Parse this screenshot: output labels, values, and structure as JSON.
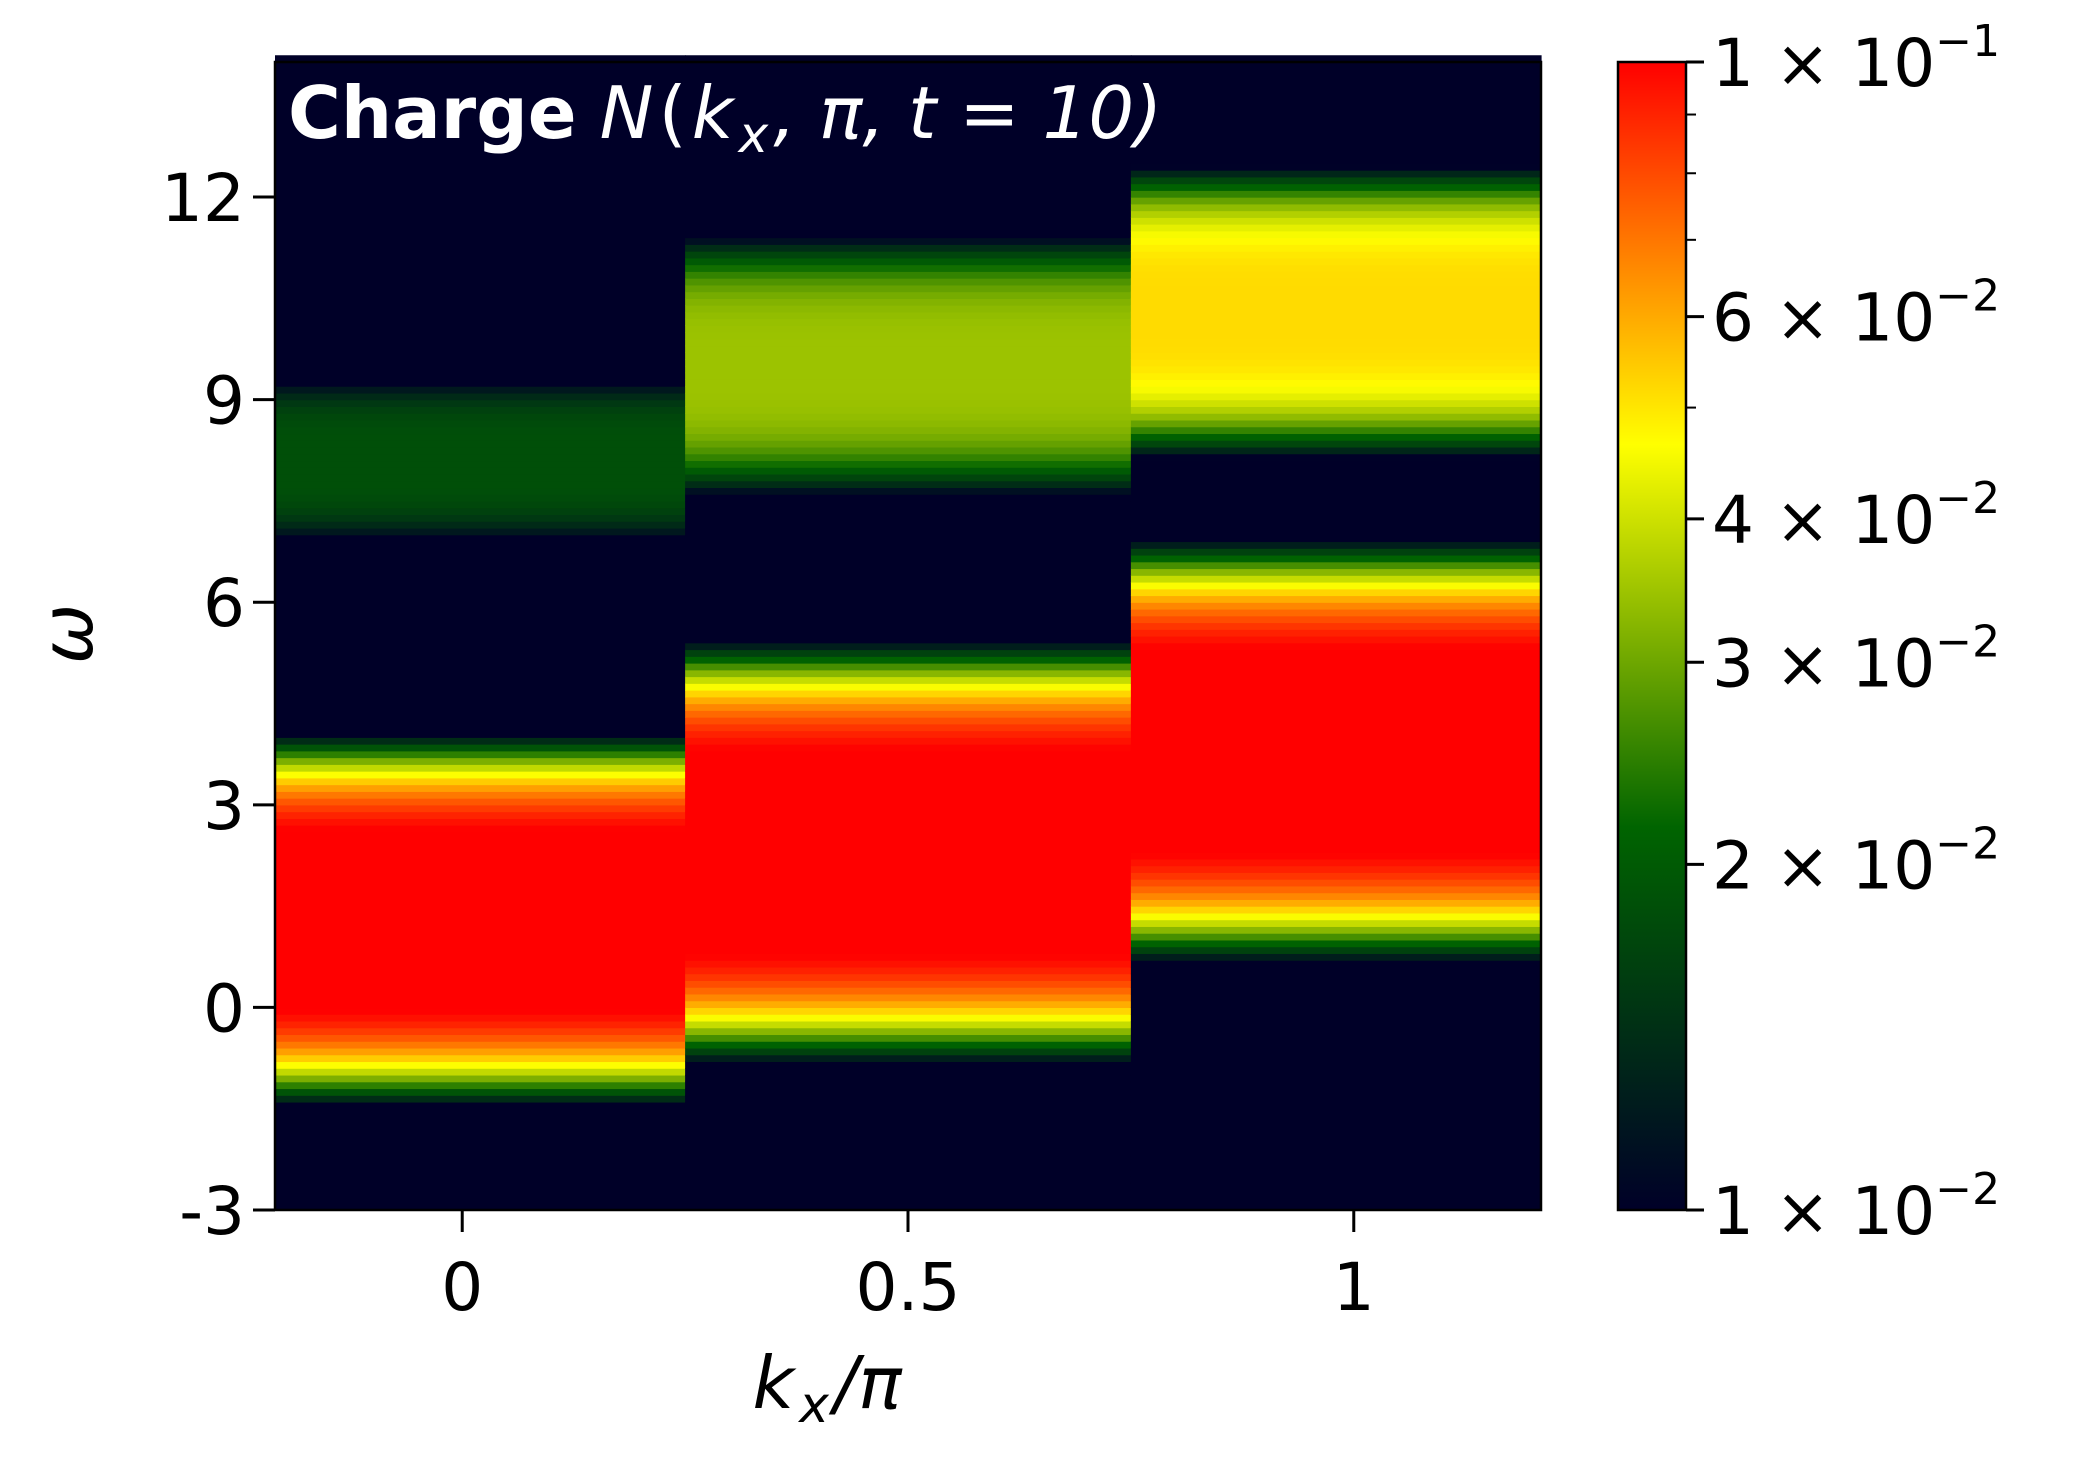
{
  "chart_data": {
    "type": "heatmap",
    "title": {
      "bold": "Charge",
      "symbol": "N",
      "args_open": "(",
      "kx": "k",
      "kx_sub": "x",
      "rest": ", π, t = 10)"
    },
    "xlabel": {
      "main": "k",
      "sub": "x",
      "rest": "/π"
    },
    "ylabel": "ω",
    "x_ticks": [
      {
        "value": 0,
        "label": "0"
      },
      {
        "value": 0.5,
        "label": "0.5"
      },
      {
        "value": 1,
        "label": "1"
      }
    ],
    "y_ticks": [
      {
        "value": -3,
        "label": "-3"
      },
      {
        "value": 0,
        "label": "0"
      },
      {
        "value": 3,
        "label": "3"
      },
      {
        "value": 6,
        "label": "6"
      },
      {
        "value": 9,
        "label": "9"
      },
      {
        "value": 12,
        "label": "12"
      }
    ],
    "xlim": [
      -0.21,
      1.21
    ],
    "ylim": [
      -3,
      14
    ],
    "color_scale": "log",
    "colorbar": {
      "range": [
        0.01,
        0.1
      ],
      "colors": [
        "#000028",
        "#006400",
        "#ffff00",
        "#ff0000"
      ],
      "labels": [
        {
          "value": 0.1,
          "mantissa": "1",
          "times": "×",
          "base": "10",
          "exp": "−1"
        },
        {
          "value": 0.06,
          "mantissa": "6",
          "times": "×",
          "base": "10",
          "exp": "−2"
        },
        {
          "value": 0.04,
          "mantissa": "4",
          "times": "×",
          "base": "10",
          "exp": "−2"
        },
        {
          "value": 0.03,
          "mantissa": "3",
          "times": "×",
          "base": "10",
          "exp": "−2"
        },
        {
          "value": 0.02,
          "mantissa": "2",
          "times": "×",
          "base": "10",
          "exp": "−2"
        },
        {
          "value": 0.01,
          "mantissa": "1",
          "times": "×",
          "base": "10",
          "exp": "−2"
        }
      ],
      "minor_ticks": [
        0.05,
        0.07,
        0.08,
        0.09
      ]
    },
    "columns": [
      {
        "kx": 0,
        "peaks": [
          {
            "omega": 1.3,
            "value": 0.1,
            "width": 2.2
          },
          {
            "omega": 8.1,
            "value": 0.016,
            "width": 1.3
          }
        ]
      },
      {
        "kx": 0.5,
        "peaks": [
          {
            "omega": 2.3,
            "value": 0.1,
            "width": 2.5
          },
          {
            "omega": 9.5,
            "value": 0.03,
            "width": 1.8
          }
        ]
      },
      {
        "kx": 1,
        "peaks": [
          {
            "omega": 3.8,
            "value": 0.1,
            "width": 2.5
          },
          {
            "omega": 10.3,
            "value": 0.045,
            "width": 1.9
          }
        ]
      }
    ]
  }
}
